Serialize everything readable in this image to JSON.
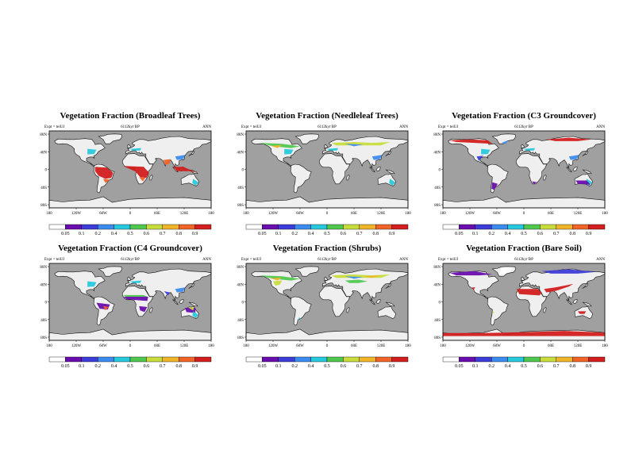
{
  "figure": {
    "panels": [
      {
        "title": "Vegetation Fraction (Broadleaf Trees)",
        "expt": "Expt = teiUJ",
        "period": "6112kyr BP",
        "season": "ANN",
        "shading": [
          "orange-tropics",
          "yellow-subtropics",
          "blue-midlat"
        ]
      },
      {
        "title": "Vegetation Fraction (Needleleaf Trees)",
        "expt": "Expt = teiUJ",
        "period": "6112kyr BP",
        "season": "ANN",
        "shading": [
          "boreal-mixed",
          "blue-midlat"
        ]
      },
      {
        "title": "Vegetation Fraction (C3 Groundcover)",
        "expt": "Expt = teiUJ",
        "period": "6112kyr BP",
        "season": "ANN",
        "shading": [
          "tundra-red",
          "blue-midlat",
          "purple-south"
        ]
      },
      {
        "title": "Vegetation Fraction (C4 Groundcover)",
        "expt": "Expt = teiUJ",
        "period": "6112kyr BP",
        "season": "ANN",
        "shading": [
          "purple-tropics",
          "green-sahel",
          "blue-midlat"
        ]
      },
      {
        "title": "Vegetation Fraction (Shrubs)",
        "expt": "Expt = teiUJ",
        "period": "6112kyr BP",
        "season": "ANN",
        "shading": [
          "boreal-mixed",
          "green-asia"
        ]
      },
      {
        "title": "Vegetation Fraction (Bare Soil)",
        "expt": "Expt = teiUJ",
        "period": "6112kyr BP",
        "season": "ANN",
        "shading": [
          "tundra-dark",
          "red-desert",
          "antarctic-red"
        ]
      }
    ],
    "x_ticks": [
      "180",
      "120W",
      "60W",
      "0",
      "60E",
      "120E",
      "180"
    ],
    "y_ticks": [
      "80N",
      "40N",
      "0",
      "40S",
      "80S"
    ],
    "colorbar": {
      "labels": [
        "0.05",
        "0.1",
        "0.2",
        "0.4",
        "0.5",
        "0.6",
        "0.7",
        "0.8",
        "0.9"
      ],
      "colors": [
        "#ffffff",
        "#6a0dad",
        "#3c3cd8",
        "#3c8cf0",
        "#28c8dc",
        "#50c850",
        "#c8dc3c",
        "#f0b428",
        "#f06428",
        "#d21e1e"
      ]
    },
    "ocean_color": "#a0a0a0",
    "land_color": "#efefef"
  },
  "chart_data": {
    "type": "heatmap",
    "panels": [
      "Vegetation Fraction (Broadleaf Trees)",
      "Vegetation Fraction (Needleleaf Trees)",
      "Vegetation Fraction (C3 Groundcover)",
      "Vegetation Fraction (C4 Groundcover)",
      "Vegetation Fraction (Shrubs)",
      "Vegetation Fraction (Bare Soil)"
    ],
    "x_range": [
      -180,
      180
    ],
    "y_range": [
      -90,
      90
    ],
    "levels": [
      0.05,
      0.1,
      0.2,
      0.4,
      0.5,
      0.6,
      0.7,
      0.8,
      0.9
    ],
    "expt": "teiUJ",
    "period": "6112kyr BP",
    "season": "ANN"
  }
}
